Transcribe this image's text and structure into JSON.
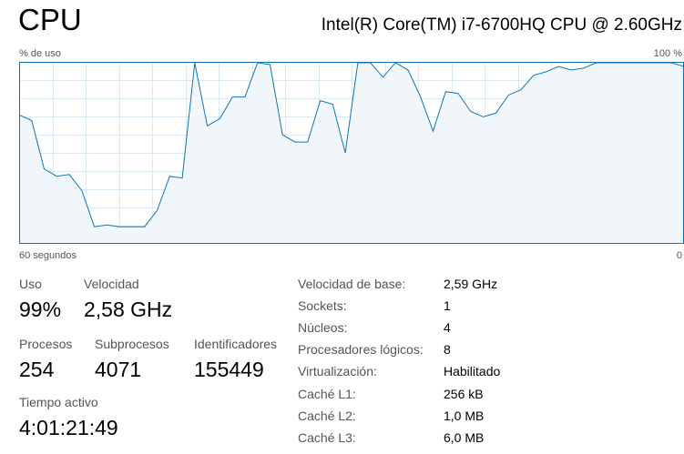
{
  "header": {
    "title": "CPU",
    "cpu_model": "Intel(R) Core(TM) i7-6700HQ CPU @ 2.60GHz"
  },
  "graph": {
    "y_label": "% de uso",
    "y_max_label": "100 %",
    "x_left_label": "60 segundos",
    "x_right_label": "0",
    "line_color": "#1174b6",
    "fill_color": "#f1f6fb",
    "grid_color": "#d9eaf4",
    "usage_percent": [
      71,
      68,
      41,
      37,
      38,
      29,
      9,
      10,
      9,
      9,
      9,
      18,
      37,
      36,
      100,
      65,
      69,
      81,
      81,
      100,
      99,
      60,
      56,
      56,
      79,
      77,
      50,
      100,
      100,
      92,
      100,
      96,
      81,
      62,
      84,
      83,
      73,
      70,
      72,
      82,
      85,
      93,
      95,
      98,
      96,
      97,
      100,
      100,
      100,
      100,
      100,
      100,
      100,
      98
    ]
  },
  "stats": {
    "uso_label": "Uso",
    "uso_value": "99%",
    "velocidad_label": "Velocidad",
    "velocidad_value": "2,58 GHz",
    "procesos_label": "Procesos",
    "procesos_value": "254",
    "subprocesos_label": "Subprocesos",
    "subprocesos_value": "4071",
    "identificadores_label": "Identificadores",
    "identificadores_value": "155449",
    "tiempo_label": "Tiempo activo",
    "tiempo_value": "4:01:21:49"
  },
  "properties": [
    {
      "label": "Velocidad de base:",
      "value": "2,59 GHz"
    },
    {
      "label": "Sockets:",
      "value": "1"
    },
    {
      "label": "Núcleos:",
      "value": "4"
    },
    {
      "label": "Procesadores lógicos:",
      "value": "8"
    },
    {
      "label": "Virtualización:",
      "value": "Habilitado"
    },
    {
      "label": "Caché L1:",
      "value": "256 kB"
    },
    {
      "label": "Caché L2:",
      "value": "1,0 MB"
    },
    {
      "label": "Caché L3:",
      "value": "6,0 MB"
    }
  ]
}
